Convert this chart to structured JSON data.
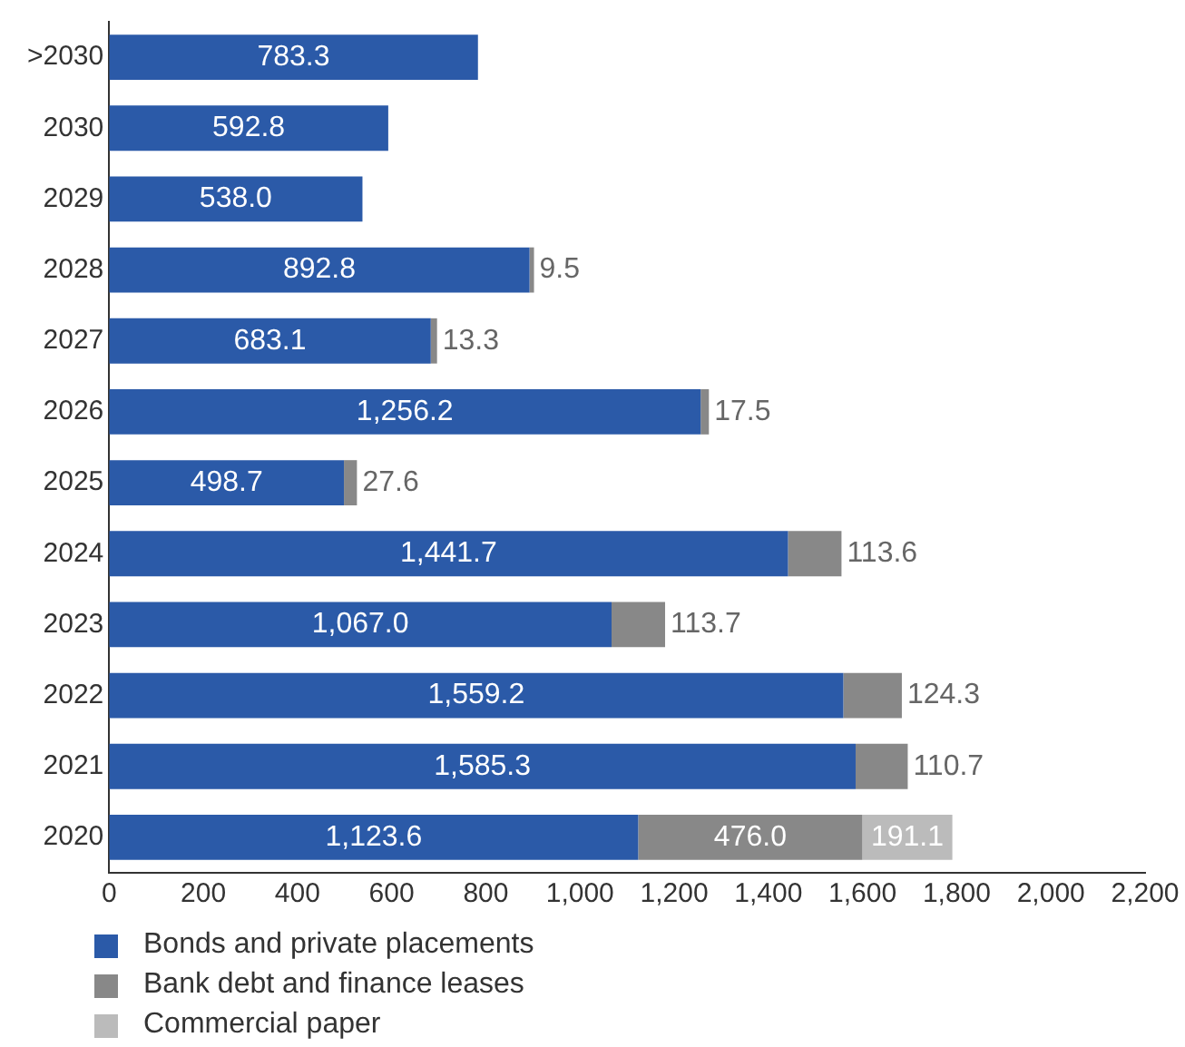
{
  "chart_data": {
    "type": "bar",
    "orientation": "horizontal",
    "stacked": true,
    "categories": [
      ">2030",
      "2030",
      "2029",
      "2028",
      "2027",
      "2026",
      "2025",
      "2024",
      "2023",
      "2022",
      "2021",
      "2020"
    ],
    "series": [
      {
        "name": "Bonds and private placements",
        "color": "#2b5aa8",
        "values": [
          783.3,
          592.8,
          538.0,
          892.8,
          683.1,
          1256.2,
          498.7,
          1441.7,
          1067.0,
          1559.2,
          1585.3,
          1123.6
        ],
        "value_labels": [
          "783.3",
          "592.8",
          "538.0",
          "892.8",
          "683.1",
          "1,256.2",
          "498.7",
          "1,441.7",
          "1,067.0",
          "1,559.2",
          "1,585.3",
          "1,123.6"
        ]
      },
      {
        "name": "Bank debt and finance leases",
        "color": "#888888",
        "values": [
          null,
          null,
          null,
          9.5,
          13.3,
          17.5,
          27.6,
          113.6,
          113.7,
          124.3,
          110.7,
          476.0
        ],
        "value_labels": [
          null,
          null,
          null,
          "9.5",
          "13.3",
          "17.5",
          "27.6",
          "113.6",
          "113.7",
          "124.3",
          "110.7",
          "476.0"
        ]
      },
      {
        "name": "Commercial paper",
        "color": "#bbbbbb",
        "values": [
          null,
          null,
          null,
          null,
          null,
          null,
          null,
          null,
          null,
          null,
          null,
          191.1
        ],
        "value_labels": [
          null,
          null,
          null,
          null,
          null,
          null,
          null,
          null,
          null,
          null,
          null,
          "191.1"
        ]
      }
    ],
    "xlim": [
      0,
      2200
    ],
    "xticks": [
      0,
      200,
      400,
      600,
      800,
      {
        "value": 1000,
        "label": "1,000"
      },
      {
        "value": 1200,
        "label": "1,200"
      },
      {
        "value": 1400,
        "label": "1,400"
      },
      {
        "value": 1600,
        "label": "1,600"
      },
      {
        "value": 1800,
        "label": "1,800"
      },
      {
        "value": 2000,
        "label": "2,000"
      },
      {
        "value": 2200,
        "label": "2,200"
      }
    ],
    "grid": false,
    "legend": "bottom"
  }
}
